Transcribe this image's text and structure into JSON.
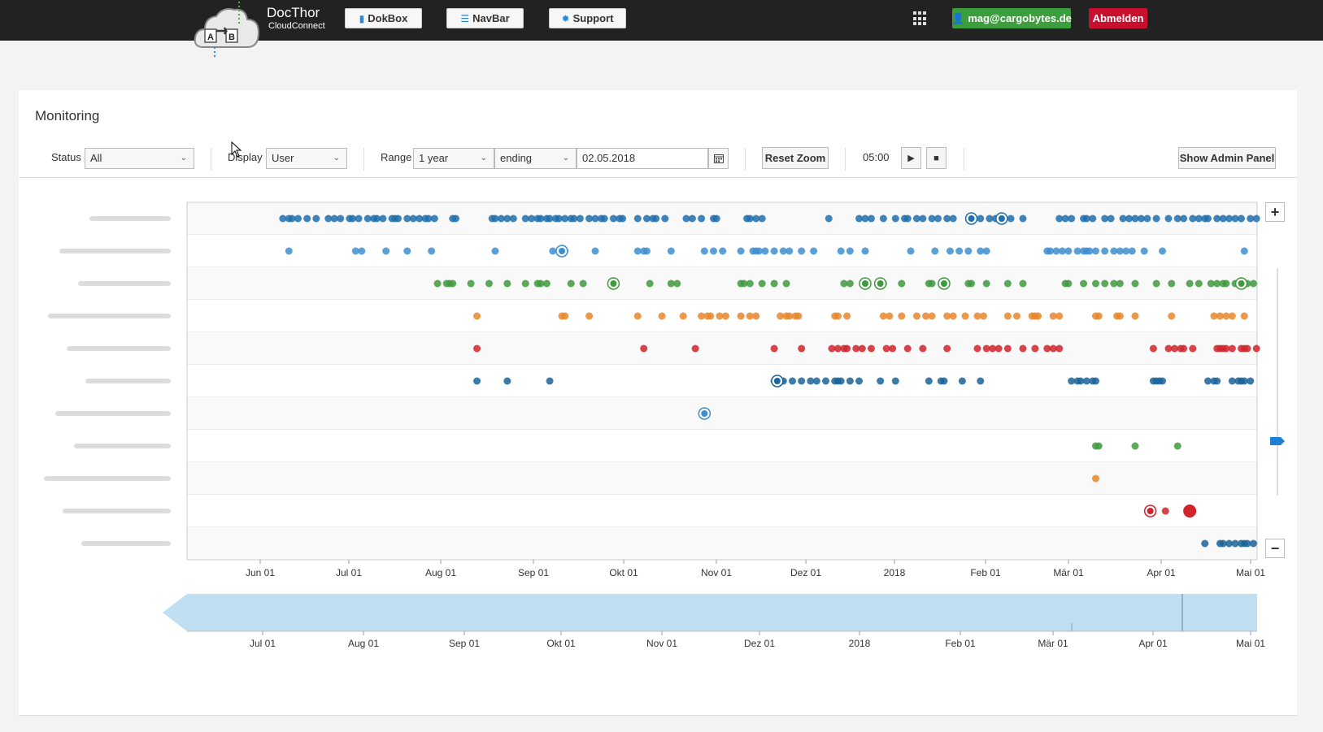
{
  "brand": {
    "title": "DocThor",
    "subtitle": "CloudConnect"
  },
  "nav": {
    "dokbox": "DokBox",
    "navbar": "NavBar",
    "support": "Support",
    "user": "mag@cargobytes.de",
    "logout": "Abmelden"
  },
  "panel": {
    "title": "Monitoring"
  },
  "toolbar": {
    "status_label": "Status",
    "status_value": "All",
    "display_label": "Display",
    "display_value": "User",
    "range_label": "Range",
    "range_value": "1 year",
    "ending_value": "ending",
    "date_value": "02.05.2018",
    "reset_zoom": "Reset Zoom",
    "time": "05:00",
    "show_admin": "Show Admin Panel"
  },
  "colors": {
    "blue": "#1f6fad",
    "lightblue": "#3d8fcf",
    "green": "#3f9a3f",
    "orange": "#e8862a",
    "red": "#d1232a",
    "darkblue": "#1a6499"
  },
  "chart_data": {
    "type": "scatter",
    "x_ticks": [
      "Jun 01",
      "Jul 01",
      "Aug 01",
      "Sep 01",
      "Okt 01",
      "Nov 01",
      "Dez 01",
      "2018",
      "Feb 01",
      "Mär 01",
      "Apr 01",
      "Mai 01"
    ],
    "nav_ticks": [
      "Jul 01",
      "Aug 01",
      "Sep 01",
      "Okt 01",
      "Nov 01",
      "Dez 01",
      "2018",
      "Feb 01",
      "Mär 01",
      "Apr 01",
      "Mai 01"
    ],
    "rows": [
      {
        "color": "#1f6fad",
        "days": [
          8,
          10,
          11,
          13,
          16,
          19,
          23,
          25,
          27,
          30,
          31,
          33,
          36,
          38,
          39,
          41,
          44,
          45,
          46,
          49,
          51,
          53,
          55,
          56,
          58,
          64,
          65,
          77,
          78,
          80,
          82,
          84,
          88,
          90,
          92,
          93,
          95,
          96,
          98,
          99,
          101,
          103,
          104,
          106,
          109,
          111,
          113,
          114,
          117,
          119,
          120,
          125,
          128,
          130,
          131,
          134,
          141,
          143,
          146,
          150,
          151,
          161,
          162,
          164,
          166,
          188,
          198,
          200,
          202,
          206,
          210,
          213,
          214,
          217,
          219,
          222,
          224,
          227,
          229,
          236,
          238,
          241,
          243,
          248,
          252,
          264,
          266,
          268,
          272,
          273,
          275,
          279,
          281,
          285,
          287,
          289,
          291,
          293,
          296,
          300,
          303,
          305,
          308,
          310,
          312,
          313,
          316,
          318,
          320,
          322,
          324,
          327,
          329,
          331,
          334,
          335
        ]
      },
      {
        "color": "#3d8fcf",
        "days": [
          10,
          32,
          34,
          42,
          49,
          57,
          78,
          97,
          101,
          111,
          125,
          127,
          128,
          136,
          147,
          150,
          153,
          159,
          163,
          164,
          165,
          167,
          170,
          173,
          175,
          179,
          183,
          192,
          195,
          200,
          215,
          223,
          228,
          231,
          234,
          238,
          240,
          260,
          261,
          263,
          265,
          267,
          270,
          272,
          273,
          274,
          276,
          279,
          282,
          284,
          286,
          288,
          292,
          298,
          325,
          330,
          331,
          336
        ]
      },
      {
        "color": "#3f9a3f",
        "days": [
          59,
          62,
          63,
          64,
          70,
          76,
          82,
          88,
          92,
          93,
          95,
          103,
          107,
          129,
          136,
          138,
          159,
          160,
          162,
          166,
          170,
          174,
          193,
          195,
          206,
          212,
          221,
          222,
          234,
          235,
          240,
          247,
          252,
          266,
          267,
          272,
          276,
          279,
          282,
          284,
          289,
          296,
          301,
          307,
          310,
          314,
          316,
          318,
          319,
          322,
          325,
          326,
          328,
          331,
          333,
          336
        ]
      },
      {
        "color": "#e8862a",
        "days": [
          72,
          100,
          101,
          109,
          125,
          133,
          140,
          146,
          148,
          149,
          152,
          154,
          159,
          162,
          164,
          172,
          174,
          175,
          177,
          178,
          190,
          191,
          194,
          206,
          208,
          212,
          217,
          220,
          222,
          227,
          229,
          233,
          237,
          239,
          247,
          250,
          255,
          256,
          257,
          262,
          264,
          276,
          277,
          283,
          284,
          289,
          301,
          315,
          317,
          319,
          321,
          325,
          333
        ]
      },
      {
        "color": "#d1232a",
        "days": [
          72,
          127,
          144,
          170,
          179,
          189,
          191,
          193,
          194,
          197,
          199,
          202,
          207,
          209,
          214,
          219,
          227,
          237,
          240,
          242,
          244,
          247,
          252,
          256,
          260,
          262,
          264,
          295,
          300,
          302,
          304,
          305,
          308,
          316,
          317,
          318,
          319,
          321,
          324,
          325,
          326,
          329,
          332,
          335,
          336
        ]
      },
      {
        "color": "#1a6499",
        "days": [
          72,
          82,
          96,
          170,
          171,
          172,
          173,
          176,
          179,
          182,
          184,
          187,
          190,
          191,
          192,
          195,
          198,
          205,
          210,
          221,
          225,
          226,
          232,
          238,
          268,
          270,
          271,
          273,
          275,
          276,
          295,
          296,
          297,
          298,
          313,
          315,
          316,
          321,
          323,
          324,
          325,
          327,
          330,
          333
        ]
      },
      {
        "color": "#3d8fcf",
        "days": [
          147
        ]
      },
      {
        "color": "#3f9a3f",
        "days": [
          276,
          277,
          289,
          303
        ]
      },
      {
        "color": "#e8862a",
        "days": [
          276
        ]
      },
      {
        "color": "#d1232a",
        "days": [
          294,
          299
        ]
      },
      {
        "color": "#1a6499",
        "days": [
          312,
          317,
          318,
          320,
          322,
          324,
          325,
          326,
          328,
          330,
          332,
          335,
          336
        ]
      }
    ],
    "rings": [
      {
        "row": 0,
        "day": 235
      },
      {
        "row": 0,
        "day": 245
      },
      {
        "row": 1,
        "day": 100
      },
      {
        "row": 2,
        "day": 117
      },
      {
        "row": 2,
        "day": 200
      },
      {
        "row": 2,
        "day": 205
      },
      {
        "row": 2,
        "day": 226
      },
      {
        "row": 2,
        "day": 324
      },
      {
        "row": 5,
        "day": 171
      },
      {
        "row": 6,
        "day": 147
      },
      {
        "row": 9,
        "day": 294
      }
    ],
    "big": [
      {
        "row": 9,
        "day": 307
      }
    ]
  }
}
